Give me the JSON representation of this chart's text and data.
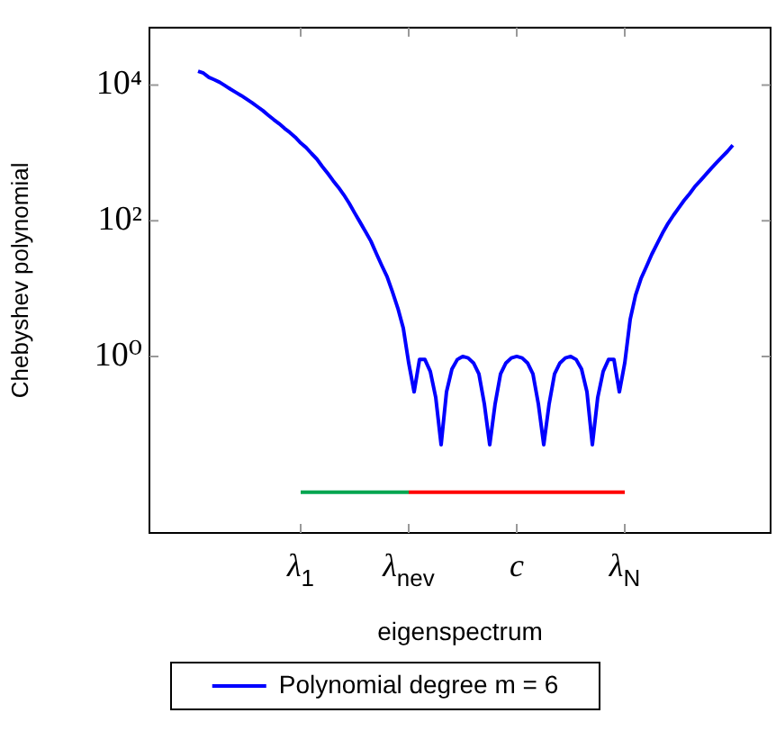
{
  "chart_data": {
    "type": "line",
    "xlabel": "eigenspectrum",
    "ylabel": "Chebyshev polynomial",
    "categories": [
      null,
      null,
      null,
      null,
      null,
      null,
      null,
      null,
      null,
      null,
      null,
      null,
      null,
      null,
      null,
      null,
      null,
      null,
      null,
      null,
      null,
      null,
      null,
      null,
      null,
      null,
      null,
      null,
      "λ$_{1}$",
      null,
      null,
      null,
      null,
      null,
      null,
      null,
      null,
      null,
      null,
      null,
      null,
      null,
      null,
      null,
      null,
      null,
      null,
      null,
      "λ$_{nev}$",
      null,
      null,
      null,
      null,
      null,
      null,
      null,
      null,
      null,
      null,
      null,
      null,
      null,
      null,
      null,
      null,
      null,
      null,
      null,
      "c",
      null,
      null,
      null,
      null,
      null,
      null,
      null,
      null,
      null,
      null,
      null,
      null,
      null,
      null,
      null,
      null,
      null,
      null,
      null,
      "λ$_{N}$",
      null,
      null,
      null,
      null,
      null,
      null,
      null,
      null,
      null,
      null,
      null,
      null,
      null,
      null,
      null,
      null,
      null,
      null,
      null,
      null,
      null,
      null,
      null,
      null,
      null,
      null,
      null
    ],
    "ylim": [
      0.0025,
      70000
    ],
    "yticks": [
      {
        "value": 1,
        "label": "10⁰"
      },
      {
        "value": 100,
        "label": "10²"
      },
      {
        "value": 10000,
        "label": "10⁴"
      }
    ],
    "log": "y",
    "grid": false,
    "legend": "bottom",
    "marker": "none",
    "line_style": "solid",
    "series": [
      {
        "name": "Polynomial degree m = 6",
        "color": "#0000ff",
        "values": [
          null,
          null,
          null,
          null,
          null,
          null,
          null,
          null,
          null,
          16000,
          15000,
          13000,
          12000,
          11000,
          9800,
          8700,
          7800,
          7000,
          6200,
          5500,
          4800,
          4200,
          3600,
          3100,
          2700,
          2300,
          2000,
          1700,
          1400,
          1200,
          980,
          810,
          630,
          500,
          390,
          310,
          240,
          180,
          130,
          95,
          69,
          50,
          33,
          22,
          15,
          8.9,
          5.1,
          2.6,
          0.8,
          0.3,
          0.9,
          0.9,
          0.6,
          0.25,
          0.05,
          0.3,
          0.65,
          0.9,
          1,
          0.95,
          0.8,
          0.55,
          0.2,
          0.05,
          0.2,
          0.55,
          0.8,
          0.95,
          1,
          0.95,
          0.8,
          0.55,
          0.2,
          0.05,
          0.2,
          0.55,
          0.8,
          0.95,
          1,
          0.9,
          0.65,
          0.3,
          0.05,
          0.25,
          0.6,
          0.9,
          0.9,
          0.3,
          0.8,
          3.5,
          8,
          14,
          21,
          32,
          46,
          66,
          91,
          120,
          155,
          200,
          250,
          320,
          390,
          480,
          590,
          720,
          870,
          1050,
          1300,
          null,
          null,
          null,
          null,
          null,
          null,
          null
        ]
      },
      {
        "color": "#00a550",
        "values": [
          null,
          null,
          null,
          null,
          null,
          null,
          null,
          null,
          null,
          null,
          null,
          null,
          null,
          null,
          null,
          null,
          null,
          null,
          null,
          null,
          null,
          null,
          null,
          null,
          null,
          null,
          null,
          null,
          0.01,
          0.01,
          0.01,
          0.01,
          0.01,
          0.01,
          0.01,
          0.01,
          0.01,
          0.01,
          0.01,
          0.01,
          0.01,
          0.01,
          0.01,
          0.01,
          0.01,
          0.01,
          0.01,
          0.01,
          0.01,
          null,
          null,
          null,
          null,
          null,
          null,
          null,
          null,
          null,
          null,
          null,
          null,
          null,
          null,
          null,
          null,
          null,
          null,
          null,
          null,
          null,
          null,
          null,
          null,
          null,
          null,
          null,
          null,
          null,
          null,
          null,
          null,
          null,
          null,
          null,
          null,
          null,
          null,
          null,
          null,
          null,
          null,
          null,
          null,
          null,
          null,
          null,
          null,
          null,
          null,
          null,
          null,
          null,
          null,
          null,
          null,
          null,
          null,
          null,
          null,
          null,
          null,
          null,
          null,
          null,
          null,
          null
        ]
      },
      {
        "color": "#ff0000",
        "values": [
          null,
          null,
          null,
          null,
          null,
          null,
          null,
          null,
          null,
          null,
          null,
          null,
          null,
          null,
          null,
          null,
          null,
          null,
          null,
          null,
          null,
          null,
          null,
          null,
          null,
          null,
          null,
          null,
          null,
          null,
          null,
          null,
          null,
          null,
          null,
          null,
          null,
          null,
          null,
          null,
          null,
          null,
          null,
          null,
          null,
          null,
          null,
          null,
          0.01,
          0.01,
          0.01,
          0.01,
          0.01,
          0.01,
          0.01,
          0.01,
          0.01,
          0.01,
          0.01,
          0.01,
          0.01,
          0.01,
          0.01,
          0.01,
          0.01,
          0.01,
          0.01,
          0.01,
          0.01,
          0.01,
          0.01,
          0.01,
          0.01,
          0.01,
          0.01,
          0.01,
          0.01,
          0.01,
          0.01,
          0.01,
          0.01,
          0.01,
          0.01,
          0.01,
          0.01,
          0.01,
          0.01,
          0.01,
          0.01,
          null,
          null,
          null,
          null,
          null,
          null,
          null,
          null,
          null,
          null,
          null,
          null,
          null,
          null,
          null,
          null,
          null,
          null,
          null,
          null,
          null,
          null,
          null,
          null,
          null,
          null,
          null
        ]
      }
    ]
  }
}
